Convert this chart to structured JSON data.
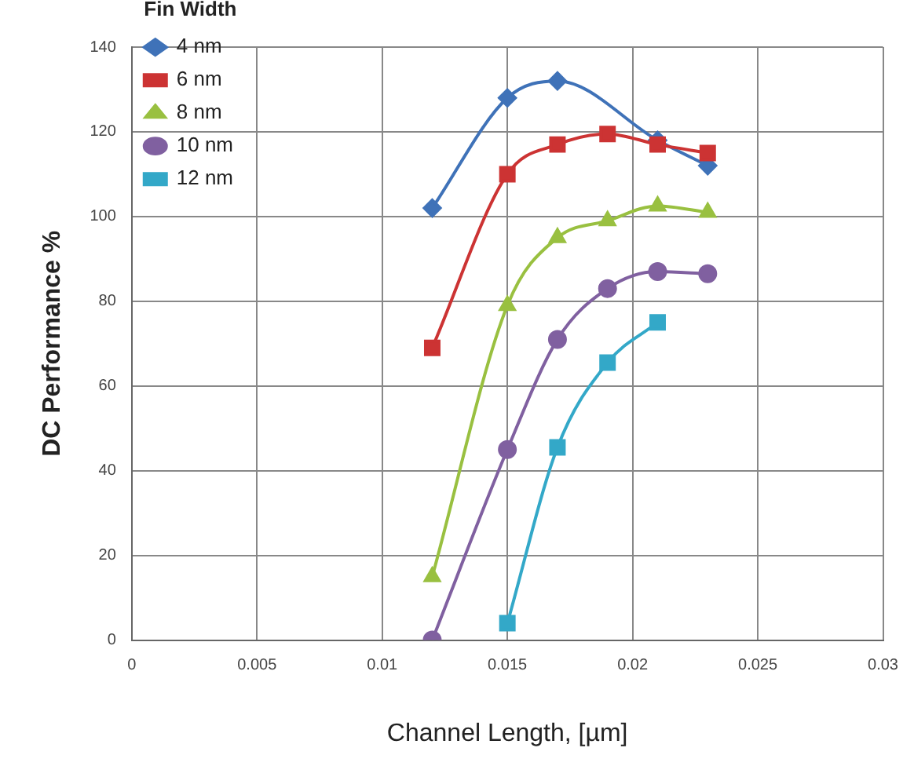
{
  "chart_data": {
    "type": "line",
    "xlabel": "Channel Length, [µm]",
    "ylabel": "DC Performance %",
    "legend_title": "Fin Width",
    "legend": "top left",
    "grid": true,
    "xlim": [
      0,
      0.03
    ],
    "xticks": [
      0,
      0.005,
      0.01,
      0.015,
      0.02,
      0.025,
      0.03
    ],
    "ylim": [
      0,
      140
    ],
    "yticks": [
      0,
      20,
      40,
      60,
      80,
      100,
      120,
      140
    ],
    "series": [
      {
        "name": "4 nm",
        "color": "#3f72b8",
        "marker": "diamond",
        "x": [
          0.012,
          0.015,
          0.017,
          0.021,
          0.023
        ],
        "values": [
          102,
          128,
          132,
          118,
          112
        ]
      },
      {
        "name": "6 nm",
        "color": "#cc3333",
        "marker": "square",
        "x": [
          0.012,
          0.015,
          0.017,
          0.019,
          0.021,
          0.023
        ],
        "values": [
          69,
          110,
          117,
          119.5,
          117,
          115
        ]
      },
      {
        "name": "8 nm",
        "color": "#99c040",
        "marker": "triangle",
        "x": [
          0.012,
          0.015,
          0.017,
          0.019,
          0.021,
          0.023
        ],
        "values": [
          15,
          79,
          95,
          99,
          102.5,
          101
        ]
      },
      {
        "name": "10 nm",
        "color": "#8060a0",
        "marker": "circle",
        "x": [
          0.012,
          0.015,
          0.017,
          0.019,
          0.021,
          0.023
        ],
        "values": [
          0,
          45,
          71,
          83,
          87,
          86.5
        ]
      },
      {
        "name": "12 nm",
        "color": "#33a8c8",
        "marker": "square",
        "x": [
          0.015,
          0.017,
          0.019,
          0.021
        ],
        "values": [
          4,
          45.5,
          65.5,
          75
        ]
      }
    ]
  }
}
